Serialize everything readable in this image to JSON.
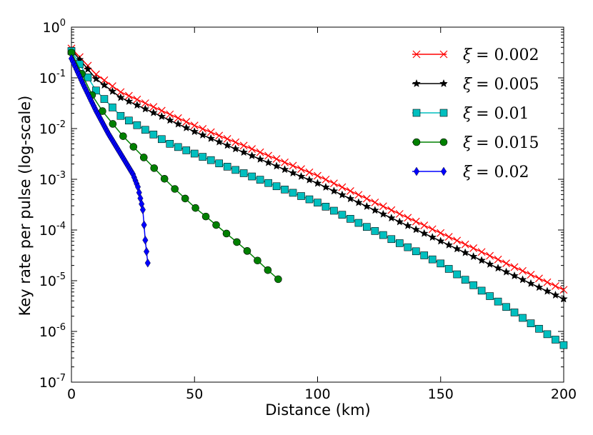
{
  "chart_data": {
    "type": "line",
    "title": "",
    "xlabel": "Distance (km)",
    "ylabel": "Key rate per pulse (log-scale)",
    "xlim": [
      0,
      200
    ],
    "ylim_log10": [
      -7,
      0
    ],
    "yscale": "log",
    "x_ticks": [
      "0",
      "50",
      "100",
      "150",
      "200"
    ],
    "y_ticks": [
      {
        "base": "10",
        "exp": "-7"
      },
      {
        "base": "10",
        "exp": "-6"
      },
      {
        "base": "10",
        "exp": "-5"
      },
      {
        "base": "10",
        "exp": "-4"
      },
      {
        "base": "10",
        "exp": "-3"
      },
      {
        "base": "10",
        "exp": "-2"
      },
      {
        "base": "10",
        "exp": "-1"
      },
      {
        "base": "10",
        "exp": "0"
      }
    ],
    "legend_position": "top-right",
    "series": [
      {
        "name": "ξ = 0.002",
        "legend_symbol": "ξ",
        "legend_value": "= 0.002",
        "color": "#ff0000",
        "marker": "x",
        "x_start": 0,
        "x_step": 3.333,
        "count": 61,
        "log10_points": [
          [
            0,
            -0.42
          ],
          [
            10,
            -0.93
          ],
          [
            20,
            -1.28
          ],
          [
            50,
            -1.94
          ],
          [
            100,
            -2.93
          ],
          [
            150,
            -4.06
          ],
          [
            200,
            -5.18
          ]
        ]
      },
      {
        "name": "ξ = 0.005",
        "legend_symbol": "ξ",
        "legend_value": "= 0.005",
        "color": "#000000",
        "marker": "star",
        "x_start": 0,
        "x_step": 3.333,
        "count": 61,
        "log10_points": [
          [
            0,
            -0.45
          ],
          [
            10,
            -1.02
          ],
          [
            20,
            -1.39
          ],
          [
            50,
            -2.06
          ],
          [
            100,
            -3.08
          ],
          [
            150,
            -4.22
          ],
          [
            200,
            -5.36
          ]
        ]
      },
      {
        "name": "ξ = 0.01",
        "legend_symbol": "ξ",
        "legend_value": "= 0.01",
        "color": "#00bfbf",
        "marker": "square",
        "x_start": 0,
        "x_step": 3.333,
        "count": 61,
        "log10_points": [
          [
            0,
            -0.47
          ],
          [
            10,
            -1.25
          ],
          [
            20,
            -1.75
          ],
          [
            40,
            -2.3
          ],
          [
            100,
            -3.46
          ],
          [
            150,
            -4.66
          ],
          [
            200,
            -6.27
          ]
        ]
      },
      {
        "name": "ξ = 0.015",
        "legend_symbol": "ξ",
        "legend_value": "= 0.015",
        "color": "#008000",
        "marker": "circle",
        "x_start": 0,
        "x_step": 4.2,
        "count": 21,
        "log10_points": [
          [
            0,
            -0.5
          ],
          [
            10,
            -1.5
          ],
          [
            20,
            -2.1
          ],
          [
            30,
            -2.6
          ],
          [
            40,
            -3.1
          ],
          [
            50,
            -3.55
          ],
          [
            60,
            -3.95
          ],
          [
            70,
            -4.35
          ],
          [
            80,
            -4.8
          ],
          [
            84,
            -4.97
          ]
        ]
      },
      {
        "name": "ξ = 0.02",
        "legend_symbol": "ξ",
        "legend_value": "= 0.02",
        "color": "#0000ff",
        "marker": "diamond",
        "x_start": 0,
        "x_step": 0.5,
        "count": 63,
        "log10_points": [
          [
            0,
            -0.62
          ],
          [
            5,
            -1.15
          ],
          [
            10,
            -1.65
          ],
          [
            15,
            -2.1
          ],
          [
            20,
            -2.5
          ],
          [
            25,
            -2.9
          ],
          [
            27,
            -3.15
          ],
          [
            29,
            -3.6
          ],
          [
            30,
            -4.2
          ],
          [
            31,
            -4.65
          ]
        ]
      }
    ]
  }
}
